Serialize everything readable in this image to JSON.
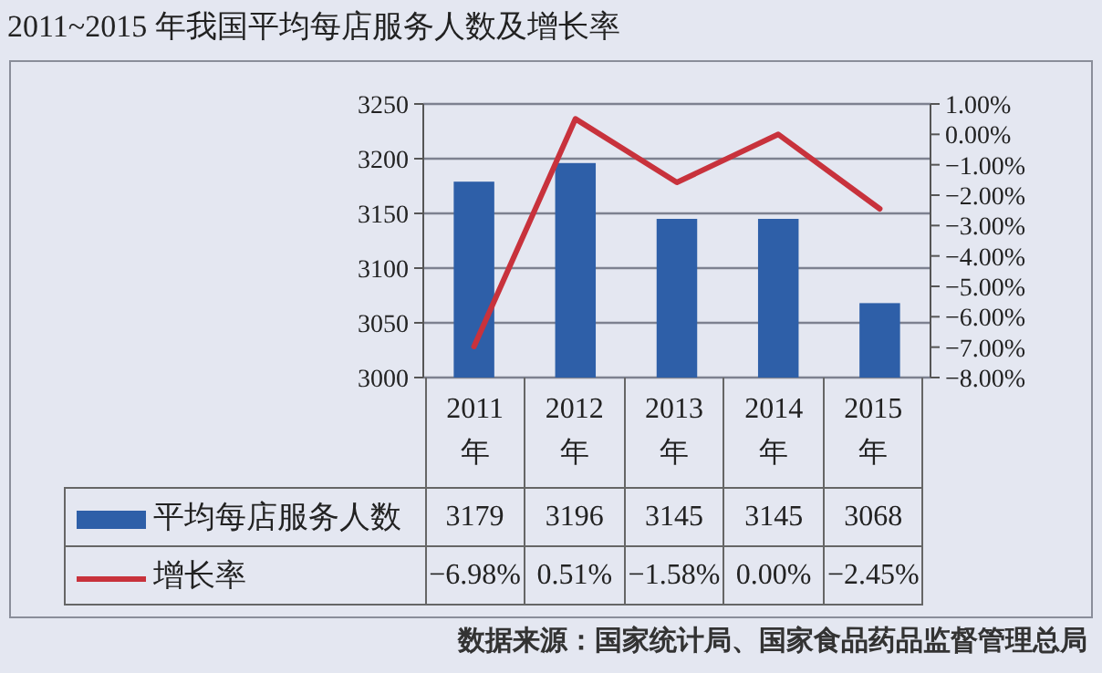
{
  "chart_data": {
    "type": "bar",
    "title": "2011~2015 年我国平均每店服务人数及增长率",
    "categories": [
      "2011年",
      "2012年",
      "2013年",
      "2014年",
      "2015年"
    ],
    "series": [
      {
        "name": "平均每店服务人数",
        "color": "#2e5fa8",
        "values": [
          3179,
          3196,
          3145,
          3145,
          3068
        ],
        "value_labels": [
          "3179",
          "3196",
          "3145",
          "3145",
          "3068"
        ]
      },
      {
        "name": "增长率",
        "type": "line",
        "axis": "y2",
        "color": "#c8323c",
        "values": [
          -6.98,
          0.51,
          -1.58,
          0.0,
          -2.45
        ],
        "value_labels": [
          "−6.98%",
          "0.51%",
          "−1.58%",
          "0.00%",
          "−2.45%"
        ]
      }
    ],
    "ylim": [
      3000,
      3250
    ],
    "yticks": [
      3000,
      3050,
      3100,
      3150,
      3200,
      3250
    ],
    "y2lim": [
      -8,
      1
    ],
    "y2ticks": [
      {
        "value": 1,
        "label": "1.00%"
      },
      {
        "value": 0,
        "label": "0.00%"
      },
      {
        "value": -1,
        "label": "−1.00%"
      },
      {
        "value": -2,
        "label": "−2.00%"
      },
      {
        "value": -3,
        "label": "−3.00%"
      },
      {
        "value": -4,
        "label": "−4.00%"
      },
      {
        "value": -5,
        "label": "−5.00%"
      },
      {
        "value": -6,
        "label": "−6.00%"
      },
      {
        "value": -7,
        "label": "−7.00%"
      },
      {
        "value": -8,
        "label": "−8.00%"
      }
    ],
    "grid": "y",
    "legend": "bottom left",
    "annotations": [
      "数据来源：国家统计局、国家食品药品监督管理总局"
    ]
  }
}
